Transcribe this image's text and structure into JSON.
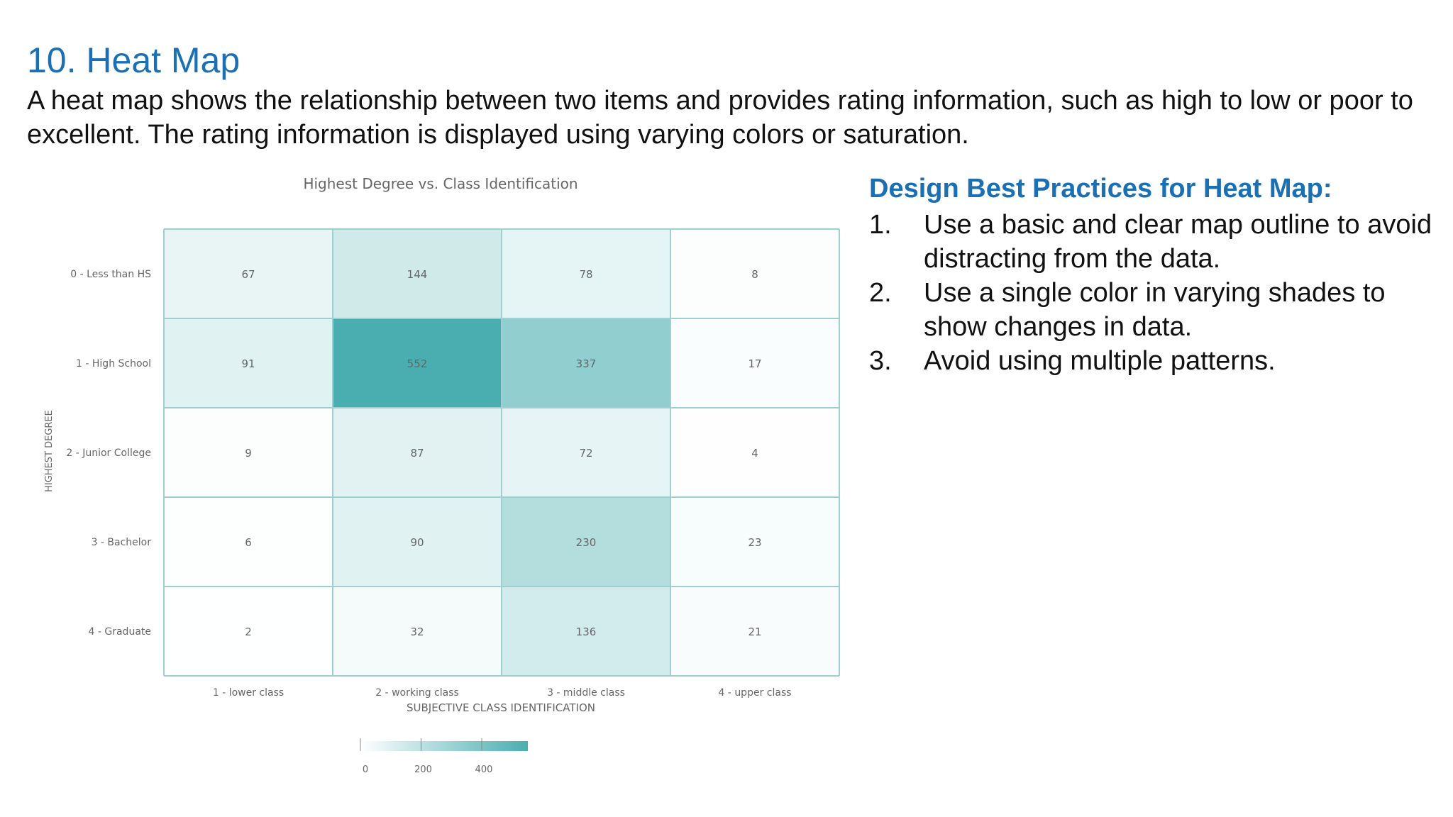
{
  "slide": {
    "title": "10. Heat Map",
    "intro": "A heat map shows the relationship between two items and provides rating information, such as high to low or poor to excellent. The rating information is displayed using varying colors or saturation."
  },
  "practices": {
    "heading": "Design Best Practices for Heat Map:",
    "items": [
      {
        "num": "1.",
        "text": "Use a basic and clear map outline to avoid distracting from the data."
      },
      {
        "num": "2.",
        "text": "Use a single color in varying shades to show changes in data."
      },
      {
        "num": "3.",
        "text": "Avoid using multiple patterns."
      }
    ]
  },
  "chart_data": {
    "type": "heatmap",
    "title": "Highest Degree vs. Class Identification",
    "xlabel": "SUBJECTIVE CLASS IDENTIFICATION",
    "ylabel": "HIGHEST DEGREE",
    "x_categories": [
      "1 - lower class",
      "2 - working class",
      "3 - middle class",
      "4 - upper class"
    ],
    "y_categories": [
      "0 - Less than HS",
      "1 - High School",
      "2 - Junior College",
      "3 - Bachelor",
      "4 - Graduate"
    ],
    "values": [
      [
        67,
        144,
        78,
        8
      ],
      [
        91,
        552,
        337,
        17
      ],
      [
        9,
        87,
        72,
        4
      ],
      [
        6,
        90,
        230,
        23
      ],
      [
        2,
        32,
        136,
        21
      ]
    ],
    "color_scale": {
      "min": 0,
      "max": 552,
      "low_color": "#ffffff",
      "high_color": "#4aaeb0",
      "ticks": [
        0,
        200,
        400
      ]
    },
    "grid_color": "#9fcfd0",
    "legend_position": "bottom-left"
  }
}
